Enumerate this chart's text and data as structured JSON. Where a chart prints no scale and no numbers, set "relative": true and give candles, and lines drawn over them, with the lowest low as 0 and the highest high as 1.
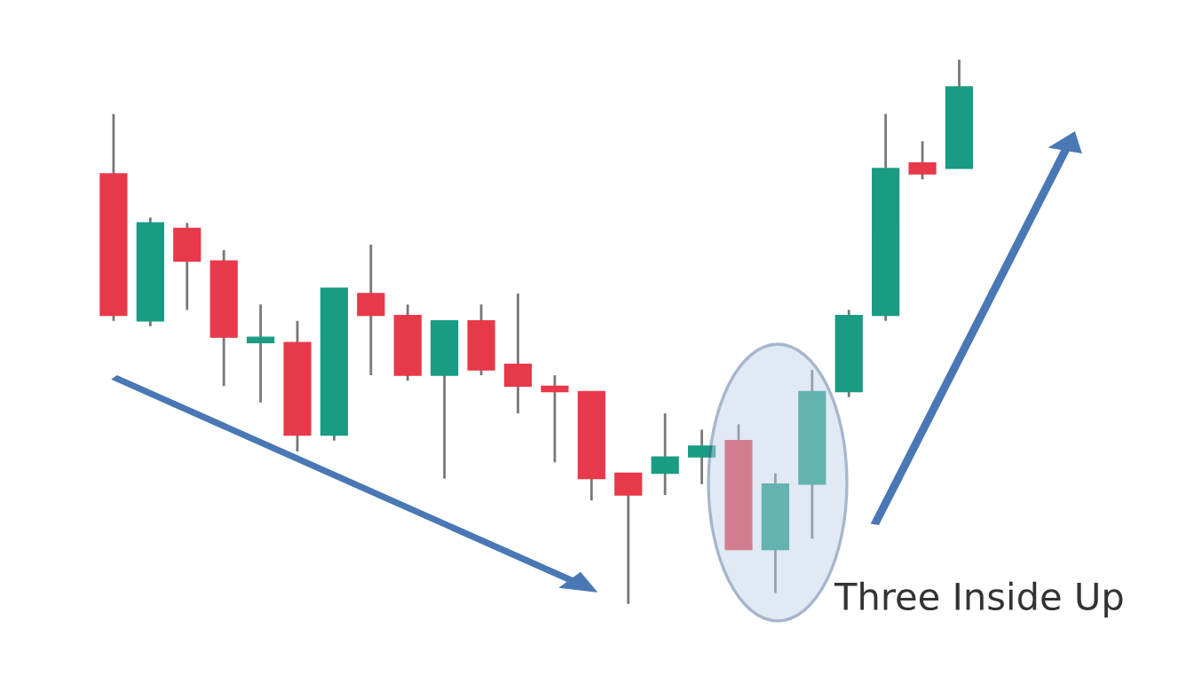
{
  "chart_data": {
    "type": "candlestick",
    "relative": true,
    "grid": false,
    "legend": false,
    "categories": [
      null,
      null,
      null,
      null,
      null,
      null,
      null,
      null,
      null,
      null,
      null,
      null,
      null,
      null,
      null,
      null,
      null,
      null,
      null,
      null,
      null,
      null,
      null,
      null
    ],
    "ohlc": [
      [
        0.79,
        0.9,
        0.52,
        0.53
      ],
      [
        0.52,
        0.71,
        0.51,
        0.7
      ],
      [
        0.69,
        0.7,
        0.54,
        0.63
      ],
      [
        0.63,
        0.65,
        0.4,
        0.49
      ],
      [
        0.48,
        0.55,
        0.37,
        0.49
      ],
      [
        0.48,
        0.52,
        0.28,
        0.31
      ],
      [
        0.31,
        0.58,
        0.3,
        0.58
      ],
      [
        0.57,
        0.66,
        0.42,
        0.53
      ],
      [
        0.53,
        0.55,
        0.41,
        0.42
      ],
      [
        0.42,
        0.52,
        0.23,
        0.52
      ],
      [
        0.52,
        0.55,
        0.42,
        0.43
      ],
      [
        0.44,
        0.57,
        0.35,
        0.4
      ],
      [
        0.4,
        0.42,
        0.26,
        0.39
      ],
      [
        0.39,
        0.39,
        0.19,
        0.23
      ],
      [
        0.24,
        0.24,
        0.0,
        0.2
      ],
      [
        0.24,
        0.35,
        0.2,
        0.27
      ],
      [
        0.27,
        0.32,
        0.22,
        0.29
      ],
      [
        0.3,
        0.33,
        0.1,
        0.1
      ],
      [
        0.1,
        0.24,
        0.02,
        0.22
      ],
      [
        0.22,
        0.43,
        0.12,
        0.39
      ],
      [
        0.39,
        0.54,
        0.38,
        0.53
      ],
      [
        0.53,
        0.9,
        0.52,
        0.8
      ],
      [
        0.81,
        0.85,
        0.78,
        0.79
      ],
      [
        0.8,
        1.0,
        0.8,
        0.95
      ]
    ],
    "colors": [
      "#e8394a",
      "#1a9b84",
      "#e8394a",
      "#e8394a",
      "#1a9b84",
      "#e8394a",
      "#1a9b84",
      "#e8394a",
      "#e8394a",
      "#1a9b84",
      "#e8394a",
      "#e8394a",
      "#e8394a",
      "#e8394a",
      "#e8394a",
      "#1a9b84",
      "#1a9b84",
      "#e8394a",
      "#1a9b84",
      "#1a9b84",
      "#1a9b84",
      "#1a9b84",
      "#e8394a",
      "#1a9b84"
    ],
    "annotations": [
      "Three Inside Up"
    ]
  }
}
